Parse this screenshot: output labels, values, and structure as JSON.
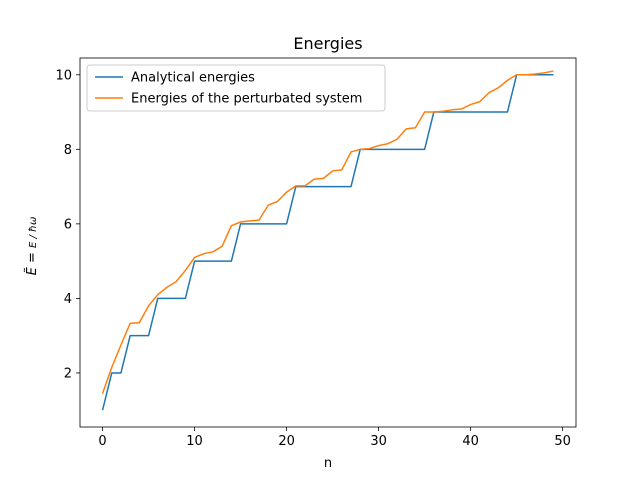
{
  "chart_data": {
    "type": "line",
    "title": "Energies",
    "xlabel": "n",
    "ylabel": "Ẽ = E / ħω",
    "xlim": [
      -2.45,
      51.45
    ],
    "ylim": [
      0.55,
      10.45
    ],
    "xticks": [
      0,
      10,
      20,
      30,
      40,
      50
    ],
    "yticks": [
      2,
      4,
      6,
      8,
      10
    ],
    "grid": false,
    "legend_position": "upper-left",
    "series": [
      {
        "name": "Analytical energies",
        "color": "#1f77b4",
        "x": [
          0,
          1,
          2,
          3,
          4,
          5,
          6,
          7,
          8,
          9,
          10,
          11,
          12,
          13,
          14,
          15,
          16,
          17,
          18,
          19,
          20,
          21,
          22,
          23,
          24,
          25,
          26,
          27,
          28,
          29,
          30,
          31,
          32,
          33,
          34,
          35,
          36,
          37,
          38,
          39,
          40,
          41,
          42,
          43,
          44,
          45,
          46,
          47,
          48,
          49
        ],
        "y": [
          1,
          2,
          2,
          3,
          3,
          3,
          4,
          4,
          4,
          4,
          5,
          5,
          5,
          5,
          5,
          6,
          6,
          6,
          6,
          6,
          6,
          7,
          7,
          7,
          7,
          7,
          7,
          7,
          8,
          8,
          8,
          8,
          8,
          8,
          8,
          8,
          9,
          9,
          9,
          9,
          9,
          9,
          9,
          9,
          9,
          10,
          10,
          10,
          10,
          10
        ]
      },
      {
        "name": "Energies of the perturbated system",
        "color": "#ff7f0e",
        "x": [
          0,
          1,
          2,
          3,
          4,
          5,
          6,
          7,
          8,
          9,
          10,
          11,
          12,
          13,
          14,
          15,
          16,
          17,
          18,
          19,
          20,
          21,
          22,
          23,
          24,
          25,
          26,
          27,
          28,
          29,
          30,
          31,
          32,
          33,
          34,
          35,
          36,
          37,
          38,
          39,
          40,
          41,
          42,
          43,
          44,
          45,
          46,
          47,
          48,
          49
        ],
        "y": [
          1.45,
          2.15,
          2.75,
          3.33,
          3.35,
          3.8,
          4.1,
          4.3,
          4.45,
          4.75,
          5.1,
          5.2,
          5.25,
          5.4,
          5.95,
          6.05,
          6.08,
          6.1,
          6.5,
          6.6,
          6.85,
          7.02,
          7.02,
          7.2,
          7.22,
          7.42,
          7.45,
          7.93,
          8.0,
          8.02,
          8.1,
          8.15,
          8.27,
          8.55,
          8.58,
          9.0,
          9.0,
          9.02,
          9.06,
          9.08,
          9.2,
          9.28,
          9.52,
          9.65,
          9.85,
          10.0,
          10.0,
          10.02,
          10.05,
          10.1
        ]
      }
    ]
  }
}
